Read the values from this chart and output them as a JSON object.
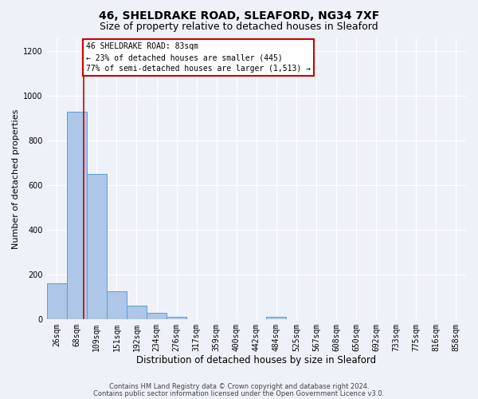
{
  "title": "46, SHELDRAKE ROAD, SLEAFORD, NG34 7XF",
  "subtitle": "Size of property relative to detached houses in Sleaford",
  "xlabel": "Distribution of detached houses by size in Sleaford",
  "ylabel": "Number of detached properties",
  "bar_labels": [
    "26sqm",
    "68sqm",
    "109sqm",
    "151sqm",
    "192sqm",
    "234sqm",
    "276sqm",
    "317sqm",
    "359sqm",
    "400sqm",
    "442sqm",
    "484sqm",
    "525sqm",
    "567sqm",
    "608sqm",
    "650sqm",
    "692sqm",
    "733sqm",
    "775sqm",
    "816sqm",
    "858sqm"
  ],
  "bar_heights": [
    160,
    930,
    650,
    125,
    60,
    28,
    10,
    0,
    0,
    0,
    0,
    10,
    0,
    0,
    0,
    0,
    0,
    0,
    0,
    0,
    0
  ],
  "bar_color": "#aec6e8",
  "bar_edge_color": "#5a9fd4",
  "annotation_box_text": "46 SHELDRAKE ROAD: 83sqm\n← 23% of detached houses are smaller (445)\n77% of semi-detached houses are larger (1,513) →",
  "annotation_box_color": "white",
  "annotation_box_edge_color": "#cc0000",
  "ylim": [
    0,
    1260
  ],
  "yticks": [
    0,
    200,
    400,
    600,
    800,
    1000,
    1200
  ],
  "footer1": "Contains HM Land Registry data © Crown copyright and database right 2024.",
  "footer2": "Contains public sector information licensed under the Open Government Licence v3.0.",
  "bg_color": "#eef2f8",
  "grid_color": "white",
  "title_fontsize": 10,
  "subtitle_fontsize": 9,
  "xlabel_fontsize": 8.5,
  "ylabel_fontsize": 8,
  "tick_fontsize": 7,
  "annot_fontsize": 7,
  "footer_fontsize": 6
}
